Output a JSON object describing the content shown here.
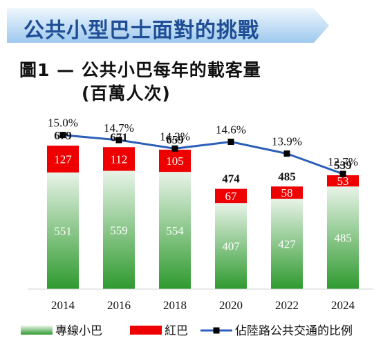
{
  "banner": {
    "title": "公共小型巴士面對的挑戰"
  },
  "figure": {
    "title": "圖1 — 公共小巴每年的載客量",
    "subtitle": "(百萬人次)"
  },
  "colors": {
    "green_top": "#e8f3e8",
    "green_bottom": "#2e9a2e",
    "red": "#ee0000",
    "line": "#2b5fb8",
    "marker": "#000000",
    "banner_top": "#eaf3fb",
    "banner_bottom": "#9cc8ee"
  },
  "chart_data": {
    "type": "bar",
    "stacked": true,
    "categories": [
      "2014",
      "2016",
      "2018",
      "2020",
      "2022",
      "2024"
    ],
    "series": [
      {
        "name": "專線小巴",
        "values": [
          551,
          559,
          554,
          407,
          427,
          485
        ]
      },
      {
        "name": "紅巴",
        "values": [
          127,
          112,
          105,
          67,
          58,
          53
        ]
      }
    ],
    "totals": [
      "679",
      "671",
      "659",
      "474",
      "485",
      "539"
    ],
    "line_series": {
      "name": "佔陸路公共交通的比例",
      "values": [
        15.0,
        14.7,
        14.2,
        14.6,
        13.9,
        12.7
      ],
      "labels": [
        "15.0%",
        "14.7%",
        "14.2%",
        "14.6%",
        "13.9%",
        "12.7%"
      ]
    },
    "legend": [
      "專線小巴",
      "紅巴",
      "佔陸路公共交通的比例"
    ],
    "legend_position": "bottom",
    "grid": false
  }
}
